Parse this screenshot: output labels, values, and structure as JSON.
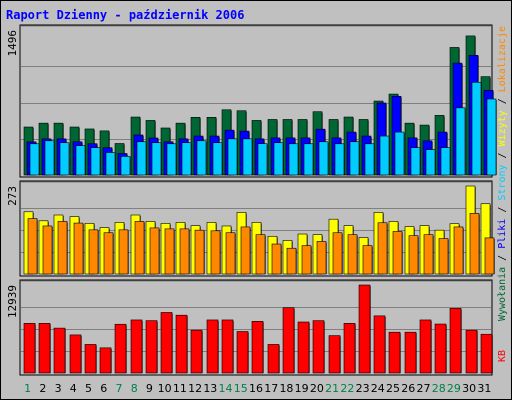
{
  "chart_data": {
    "type": "bar",
    "title": "Raport Dzienny -  październik 2006",
    "categories": [
      "1",
      "2",
      "3",
      "4",
      "5",
      "6",
      "7",
      "8",
      "9",
      "10",
      "11",
      "12",
      "13",
      "14",
      "15",
      "16",
      "17",
      "18",
      "19",
      "20",
      "21",
      "22",
      "23",
      "24",
      "25",
      "26",
      "27",
      "28",
      "29",
      "30",
      "31"
    ],
    "weekend_days": [
      "1",
      "7",
      "8",
      "14",
      "15",
      "21",
      "22",
      "28",
      "29"
    ],
    "panels": [
      {
        "ylabel_max": "1496",
        "ymax": 1496,
        "series": [
          {
            "name": "Wywołania",
            "color": "#006633",
            "values": [
              495,
              535,
              535,
              495,
              475,
              455,
              325,
              598,
              563,
              485,
              535,
              595,
              595,
              673,
              663,
              563,
              573,
              573,
              573,
              653,
              573,
              598,
              573,
              763,
              835,
              535,
              515,
              615,
              1316,
              1435,
              1015
            ]
          },
          {
            "name": "Pliki",
            "color": "#0000ff",
            "values": [
              342,
              373,
              373,
              343,
              323,
              282,
              222,
              413,
              382,
              343,
              373,
              402,
              402,
              463,
              453,
              373,
              383,
              383,
              383,
              473,
              383,
              443,
              402,
              743,
              812,
              383,
              353,
              443,
              1155,
              1235,
              874
            ]
          },
          {
            "name": "Strony",
            "color": "#00ccff",
            "values": [
              322,
              353,
              333,
              303,
              282,
              232,
              192,
              343,
              333,
              322,
              333,
              353,
              333,
              373,
              373,
              323,
              333,
              322,
              322,
              343,
              322,
              343,
              322,
              402,
              443,
              282,
              262,
              282,
              693,
              956,
              784
            ]
          }
        ]
      },
      {
        "ylabel_max": "273",
        "ymax": 273,
        "series": [
          {
            "name": "Wizyty",
            "color": "#ffff00",
            "values": [
              193,
              165,
              183,
              178,
              157,
              144,
              160,
              183,
              163,
              157,
              160,
              150,
              160,
              149,
              191,
              160,
              117,
              104,
              124,
              122,
              170,
              150,
              113,
              191,
              163,
              147,
              150,
              136,
              156,
              273,
              218
            ]
          },
          {
            "name": "Lokalizacje",
            "color": "#ff8800",
            "values": [
              172,
              149,
              163,
              158,
              137,
              128,
              137,
              163,
              143,
              140,
              140,
              136,
              134,
              128,
              146,
              122,
              93,
              80,
              88,
              101,
              128,
              122,
              88,
              159,
              132,
              119,
              122,
              110,
              146,
              188,
              112
            ]
          }
        ]
      },
      {
        "ylabel_max": "12939",
        "ymax": 12939,
        "series": [
          {
            "name": "KB",
            "color": "#ff0000",
            "values": [
              7300,
              7300,
              6600,
              5600,
              4200,
              3700,
              7170,
              7800,
              7700,
              8900,
              8500,
              6300,
              7800,
              7800,
              6100,
              7600,
              4200,
              9600,
              7500,
              7700,
              5500,
              7300,
              12939,
              8400,
              6000,
              6000,
              7800,
              7200,
              9500,
              6300,
              5700
            ]
          }
        ]
      }
    ],
    "right_legend": {
      "top": [
        {
          "text": "Wywołania",
          "color": "#006633"
        },
        {
          "text": " / ",
          "color": "#000000"
        },
        {
          "text": "Pliki",
          "color": "#0000ff"
        },
        {
          "text": " / ",
          "color": "#000000"
        },
        {
          "text": "Strony",
          "color": "#00ccff"
        },
        {
          "text": " / ",
          "color": "#000000"
        },
        {
          "text": "Wizyty",
          "color": "#ffff00"
        },
        {
          "text": " / ",
          "color": "#000000"
        },
        {
          "text": "Lokalizacje",
          "color": "#ff8800"
        }
      ],
      "bottom": {
        "text": "KB",
        "color": "#ff0000"
      }
    },
    "colors": {
      "background": "#c0c0c0",
      "plot_background": "#c0c0c0",
      "gridline": "#808080",
      "weekday_label": "#000000",
      "weekend_label": "#00804a",
      "title": "#0000ff"
    }
  }
}
